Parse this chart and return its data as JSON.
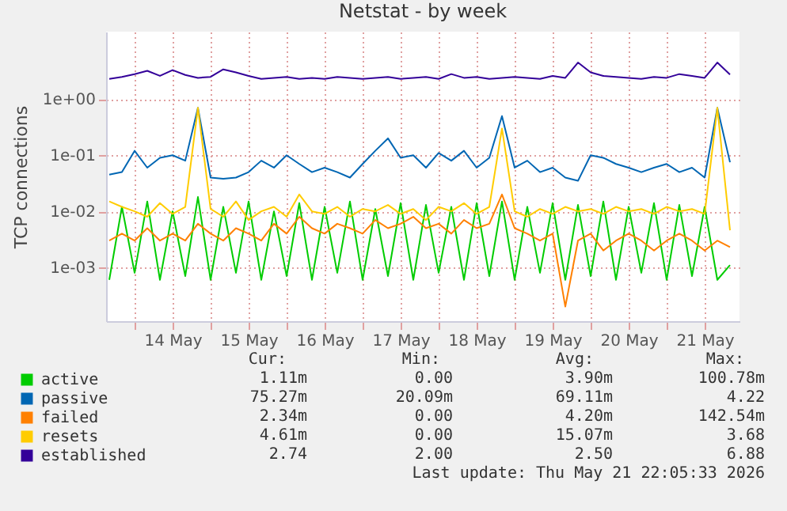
{
  "chart_data": {
    "type": "line",
    "title": "Netstat - by week",
    "ylabel": "TCP connections",
    "log": "y",
    "grid": true,
    "legend": "bottom",
    "marker": "none",
    "line_style": "solid",
    "ylim": [
      0.00011,
      16
    ],
    "yticks": [
      {
        "value": 0.001,
        "label": "1e-03"
      },
      {
        "value": 0.01,
        "label": "1e-02"
      },
      {
        "value": 0.1,
        "label": "1e-01"
      },
      {
        "value": 1,
        "label": "1e+00"
      }
    ],
    "xlim": [
      "2026-05-13T15:00",
      "2026-05-21T23:00"
    ],
    "xticks": [
      {
        "value": "2026-05-14T00:00",
        "label": null
      },
      {
        "value": "2026-05-14T12:00",
        "label": "14 May"
      },
      {
        "value": "2026-05-15T00:00",
        "label": null
      },
      {
        "value": "2026-05-15T12:00",
        "label": "15 May"
      },
      {
        "value": "2026-05-16T00:00",
        "label": null
      },
      {
        "value": "2026-05-16T12:00",
        "label": "16 May"
      },
      {
        "value": "2026-05-17T00:00",
        "label": null
      },
      {
        "value": "2026-05-17T12:00",
        "label": "17 May"
      },
      {
        "value": "2026-05-18T00:00",
        "label": null
      },
      {
        "value": "2026-05-18T12:00",
        "label": "18 May"
      },
      {
        "value": "2026-05-19T00:00",
        "label": null
      },
      {
        "value": "2026-05-19T12:00",
        "label": "19 May"
      },
      {
        "value": "2026-05-20T00:00",
        "label": null
      },
      {
        "value": "2026-05-20T12:00",
        "label": "20 May"
      },
      {
        "value": "2026-05-21T00:00",
        "label": null
      },
      {
        "value": "2026-05-21T12:00",
        "label": "21 May"
      }
    ],
    "x": [
      "2026-05-13T16:00",
      "2026-05-13T20:00",
      "2026-05-14T00:00",
      "2026-05-14T04:00",
      "2026-05-14T08:00",
      "2026-05-14T12:00",
      "2026-05-14T16:00",
      "2026-05-14T20:00",
      "2026-05-15T00:00",
      "2026-05-15T04:00",
      "2026-05-15T08:00",
      "2026-05-15T12:00",
      "2026-05-15T16:00",
      "2026-05-15T20:00",
      "2026-05-16T00:00",
      "2026-05-16T04:00",
      "2026-05-16T08:00",
      "2026-05-16T12:00",
      "2026-05-16T16:00",
      "2026-05-16T20:00",
      "2026-05-17T00:00",
      "2026-05-17T04:00",
      "2026-05-17T08:00",
      "2026-05-17T12:00",
      "2026-05-17T16:00",
      "2026-05-17T20:00",
      "2026-05-18T00:00",
      "2026-05-18T04:00",
      "2026-05-18T08:00",
      "2026-05-18T12:00",
      "2026-05-18T16:00",
      "2026-05-18T20:00",
      "2026-05-19T00:00",
      "2026-05-19T04:00",
      "2026-05-19T08:00",
      "2026-05-19T12:00",
      "2026-05-19T16:00",
      "2026-05-19T20:00",
      "2026-05-20T00:00",
      "2026-05-20T04:00",
      "2026-05-20T08:00",
      "2026-05-20T12:00",
      "2026-05-20T16:00",
      "2026-05-20T20:00",
      "2026-05-21T00:00",
      "2026-05-21T04:00",
      "2026-05-21T08:00",
      "2026-05-21T12:00",
      "2026-05-21T16:00",
      "2026-05-21T20:00"
    ],
    "series": [
      {
        "name": "active",
        "color": "#00cc00",
        "values": [
          0.0006,
          0.012,
          0.0008,
          0.015,
          0.0006,
          0.01,
          0.0007,
          0.018,
          0.0006,
          0.012,
          0.0008,
          0.015,
          0.0006,
          0.01,
          0.0007,
          0.014,
          0.0006,
          0.012,
          0.0008,
          0.015,
          0.0006,
          0.011,
          0.0007,
          0.014,
          0.0006,
          0.013,
          0.0008,
          0.012,
          0.0006,
          0.014,
          0.0007,
          0.015,
          0.0006,
          0.012,
          0.0008,
          0.014,
          0.0006,
          0.013,
          0.0007,
          0.015,
          0.0006,
          0.012,
          0.0008,
          0.014,
          0.0006,
          0.013,
          0.0007,
          0.012,
          0.0006,
          0.0011
        ]
      },
      {
        "name": "passive",
        "color": "#0066b3",
        "values": [
          0.045,
          0.05,
          0.12,
          0.06,
          0.09,
          0.1,
          0.08,
          0.7,
          0.04,
          0.038,
          0.04,
          0.05,
          0.08,
          0.06,
          0.1,
          0.07,
          0.05,
          0.06,
          0.05,
          0.04,
          0.07,
          0.12,
          0.2,
          0.09,
          0.1,
          0.06,
          0.11,
          0.08,
          0.12,
          0.06,
          0.09,
          0.5,
          0.06,
          0.08,
          0.05,
          0.06,
          0.04,
          0.035,
          0.1,
          0.09,
          0.07,
          0.06,
          0.05,
          0.06,
          0.07,
          0.05,
          0.06,
          0.04,
          0.7,
          0.075
        ]
      },
      {
        "name": "failed",
        "color": "#ff8000",
        "values": [
          0.003,
          0.004,
          0.003,
          0.005,
          0.003,
          0.004,
          0.003,
          0.006,
          0.004,
          0.003,
          0.005,
          0.004,
          0.003,
          0.006,
          0.004,
          0.008,
          0.005,
          0.004,
          0.006,
          0.005,
          0.004,
          0.007,
          0.005,
          0.006,
          0.008,
          0.005,
          0.006,
          0.004,
          0.007,
          0.005,
          0.006,
          0.02,
          0.005,
          0.004,
          0.003,
          0.004,
          0.0002,
          0.003,
          0.004,
          0.002,
          0.003,
          0.004,
          0.003,
          0.002,
          0.003,
          0.004,
          0.003,
          0.002,
          0.003,
          0.0023
        ]
      },
      {
        "name": "resets",
        "color": "#ffcc00",
        "values": [
          0.015,
          0.012,
          0.01,
          0.008,
          0.014,
          0.009,
          0.012,
          0.7,
          0.011,
          0.008,
          0.015,
          0.007,
          0.01,
          0.012,
          0.008,
          0.02,
          0.01,
          0.009,
          0.012,
          0.008,
          0.011,
          0.01,
          0.013,
          0.009,
          0.011,
          0.007,
          0.012,
          0.01,
          0.014,
          0.009,
          0.012,
          0.3,
          0.01,
          0.008,
          0.011,
          0.009,
          0.012,
          0.01,
          0.011,
          0.009,
          0.012,
          0.01,
          0.011,
          0.009,
          0.012,
          0.01,
          0.011,
          0.009,
          0.7,
          0.0046
        ]
      },
      {
        "name": "established",
        "color": "#330099",
        "values": [
          2.3,
          2.5,
          2.8,
          3.2,
          2.6,
          3.3,
          2.7,
          2.4,
          2.5,
          3.4,
          3.0,
          2.6,
          2.3,
          2.4,
          2.5,
          2.3,
          2.4,
          2.3,
          2.5,
          2.4,
          2.3,
          2.4,
          2.5,
          2.3,
          2.4,
          2.5,
          2.3,
          2.8,
          2.4,
          2.5,
          2.3,
          2.4,
          2.5,
          2.4,
          2.3,
          2.6,
          2.4,
          4.5,
          3.0,
          2.6,
          2.5,
          2.4,
          2.3,
          2.5,
          2.4,
          2.8,
          2.6,
          2.4,
          4.5,
          2.74
        ]
      }
    ],
    "annotations": [
      "Cur:",
      "Min:",
      "Avg:",
      "Max:",
      "1.11m",
      "0.00",
      "3.90m",
      "100.78m",
      "75.27m",
      "20.09m",
      "69.11m",
      "4.22",
      "2.34m",
      "0.00",
      "4.20m",
      "142.54m",
      "4.61m",
      "0.00",
      "15.07m",
      "3.68",
      "2.74",
      "2.00",
      "2.50",
      "6.88",
      "Last update: Thu May 21 22:05:33 2026"
    ]
  }
}
